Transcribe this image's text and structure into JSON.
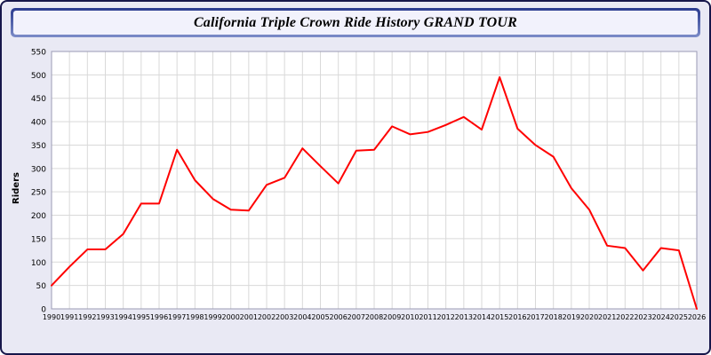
{
  "window": {
    "title": "California Triple Crown Ride History GRAND TOUR"
  },
  "colors": {
    "line": "#ff0000",
    "grid": "#d9d9d9",
    "plot_background": "#ffffff",
    "plot_border": "#9a9ab4",
    "page_background": "#e9e9f4",
    "frame_border": "#16164a",
    "titlebar_gradient_top": "#2a3a8e",
    "titlebar_gradient_bottom": "#7c8cc8"
  },
  "chart_data": {
    "type": "line",
    "title": "California Triple Crown Ride History GRAND TOUR",
    "xlabel": "",
    "ylabel": "Riders",
    "ylim": [
      0,
      550
    ],
    "yticks": [
      0,
      50,
      100,
      150,
      200,
      250,
      300,
      350,
      400,
      450,
      500,
      550
    ],
    "grid": true,
    "legend": "none",
    "line_color": "#ff0000",
    "categories": [
      "1990",
      "1991",
      "1992",
      "1993",
      "1994",
      "1995",
      "1996",
      "1997",
      "1998",
      "1999",
      "2000",
      "2001",
      "2002",
      "2003",
      "2004",
      "2005",
      "2006",
      "2007",
      "2008",
      "2009",
      "2010",
      "2011",
      "2012",
      "2013",
      "2014",
      "2015",
      "2016",
      "2017",
      "2018",
      "2019",
      "2020",
      "2021",
      "2022",
      "2023",
      "2024",
      "2025",
      "2026"
    ],
    "values": [
      50,
      90,
      127,
      127,
      160,
      225,
      225,
      340,
      275,
      235,
      212,
      210,
      265,
      280,
      343,
      305,
      268,
      338,
      340,
      390,
      373,
      378,
      393,
      410,
      383,
      495,
      385,
      350,
      325,
      258,
      212,
      135,
      130,
      82,
      130,
      125,
      0
    ]
  }
}
